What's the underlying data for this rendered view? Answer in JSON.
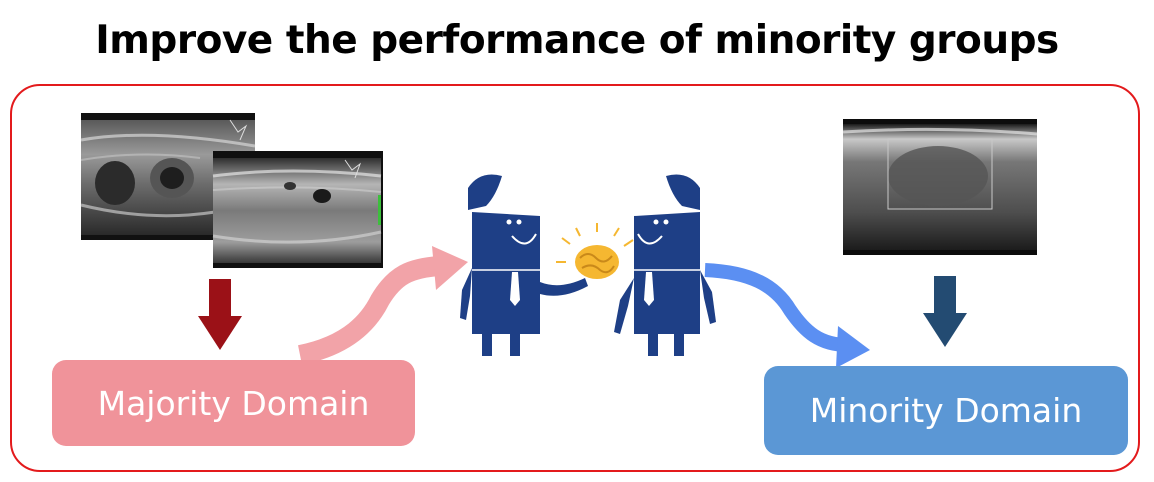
{
  "title": "Improve the performance of minority groups",
  "boxes": {
    "majority_label": "Majority Domain",
    "minority_label": "Minority Domain"
  },
  "colors": {
    "frame": "#e31a1c",
    "majority_box": "#f0939a",
    "minority_box": "#5b97d5",
    "majority_arrow": "#9b1117",
    "minority_arrow": "#234b72",
    "pink_curve": "#f2a3a8",
    "blue_curve": "#5b8ff2",
    "figure": "#1e3f86",
    "brain": "#f5b731"
  },
  "images": {
    "majority_scans": [
      "ultrasound-scan",
      "ultrasound-scan"
    ],
    "minority_scan": "ultrasound-scan"
  }
}
